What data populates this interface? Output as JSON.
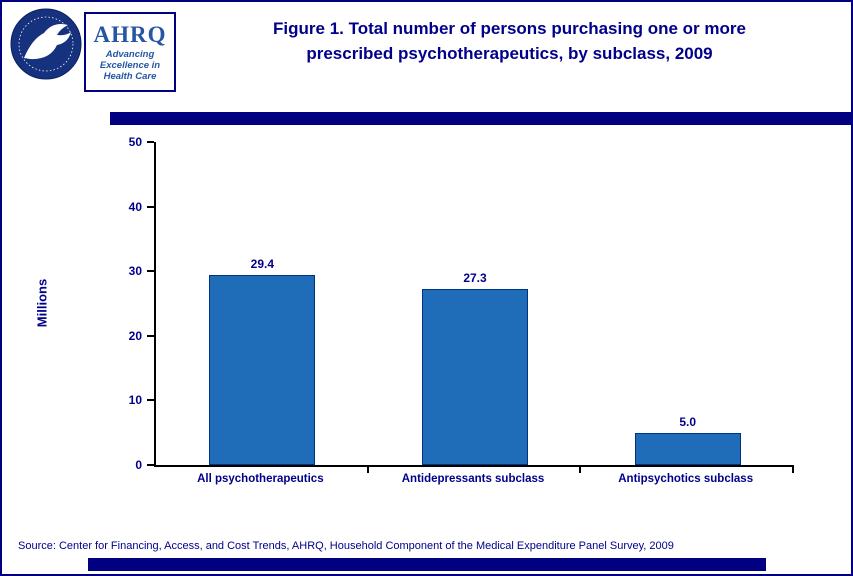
{
  "header": {
    "title_line1": "Figure 1. Total number of persons purchasing one or more",
    "title_line2": "prescribed psychotherapeutics, by subclass, 2009",
    "logo": {
      "ahrq_acronym": "AHRQ",
      "tagline_lines": [
        "Advancing",
        "Excellence in",
        "Health Care"
      ]
    }
  },
  "chart_data": {
    "type": "bar",
    "title": "Figure 1. Total number of persons purchasing one or more prescribed psychotherapeutics, by subclass, 2009",
    "categories": [
      "All psychotherapeutics",
      "Antidepressants subclass",
      "Antipsychotics subclass"
    ],
    "values": [
      29.4,
      27.3,
      5.0
    ],
    "value_labels": [
      "29.4",
      "27.3",
      "5.0"
    ],
    "xlabel": "",
    "ylabel": "Millions",
    "ylim": [
      0,
      50
    ],
    "ytick_step": 10,
    "yticks": [
      0,
      10,
      20,
      30,
      40,
      50
    ],
    "grid": false,
    "legend_position": "none",
    "bar_color": "#1F6CB8",
    "bar_border_color": "#00337F"
  },
  "footer": {
    "source": "Source: Center for Financing, Access, and Cost Trends, AHRQ, Household Component of the Medical Expenditure Panel Survey,  2009"
  },
  "colors": {
    "navy_band": "#000080",
    "title_text": "#00008B",
    "axis_line": "#000000"
  }
}
